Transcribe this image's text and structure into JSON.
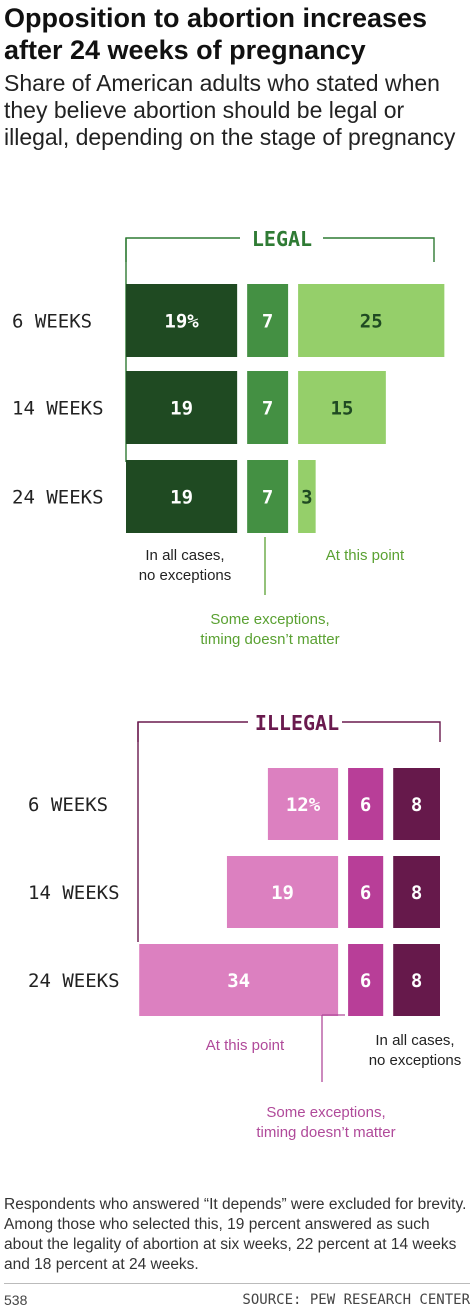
{
  "title": "Opposition to abortion increases after 24 weeks of pregnancy",
  "subtitle": "Share of American adults who stated when they believe abortion should be legal or illegal, depending on the stage of pregnancy",
  "footnote": "Respondents who answered “It depends” were excluded for brevity. Among those who selected this, 19 percent answered as such about the legality of abortion at six weeks, 22 percent at 14 weeks and 18 percent at 24 weeks.",
  "page_number": "538",
  "source": "SOURCE: PEW RESEARCH CENTER",
  "colors": {
    "legal_all": "#1f4a22",
    "legal_some": "#449043",
    "legal_point": "#95cf6a",
    "legal_heading": "#2f7b34",
    "legal_annot": "#5aa132",
    "illegal_point": "#dc80c0",
    "illegal_some": "#b83e98",
    "illegal_all": "#66194b",
    "illegal_heading": "#6a1a4e",
    "illegal_annot": "#b04a9a"
  },
  "chart_data": [
    {
      "type": "bar",
      "title": "LEGAL",
      "categories": [
        "6 WEEKS",
        "14 WEEKS",
        "24 WEEKS"
      ],
      "series": [
        {
          "name": "In all cases, no exceptions",
          "values": [
            19,
            19,
            19
          ]
        },
        {
          "name": "Some exceptions, timing doesn’t matter",
          "values": [
            7,
            7,
            7
          ]
        },
        {
          "name": "At this point",
          "values": [
            25,
            15,
            3
          ]
        }
      ],
      "value_labels": [
        [
          "19%",
          "7",
          "25"
        ],
        [
          "19",
          "7",
          "15"
        ],
        [
          "19",
          "7",
          "3"
        ]
      ],
      "annotations": [
        "In all cases, no exceptions",
        "Some exceptions, timing doesn’t matter",
        "At this point"
      ]
    },
    {
      "type": "bar",
      "title": "ILLEGAL",
      "categories": [
        "6 WEEKS",
        "14 WEEKS",
        "24 WEEKS"
      ],
      "series": [
        {
          "name": "At this point",
          "values": [
            12,
            19,
            34
          ]
        },
        {
          "name": "Some exceptions, timing doesn’t matter",
          "values": [
            6,
            6,
            6
          ]
        },
        {
          "name": "In all cases, no exceptions",
          "values": [
            8,
            8,
            8
          ]
        }
      ],
      "value_labels": [
        [
          "12%",
          "6",
          "8"
        ],
        [
          "19",
          "6",
          "8"
        ],
        [
          "34",
          "6",
          "8"
        ]
      ],
      "annotations": [
        "At this point",
        "Some exceptions, timing doesn’t matter",
        "In all cases, no exceptions"
      ]
    }
  ]
}
